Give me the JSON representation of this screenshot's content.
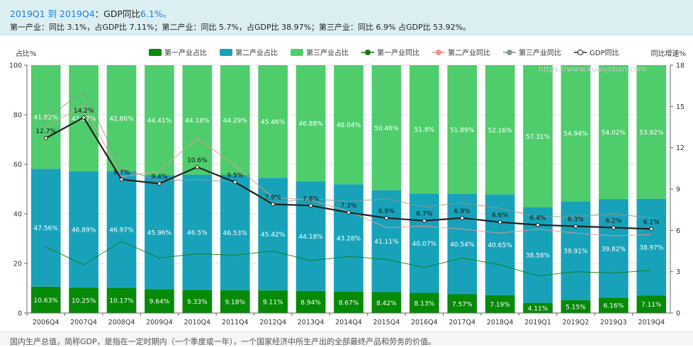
{
  "summary": {
    "range": "2019Q1 到 2019Q4",
    "gdp_label": "：GDP同比",
    "gdp_value": "6.1%。",
    "detail": "第一产业：同比 3.1%，占GDP比 7.11%；第二产业：同比 5.7%，占GDP比 38.97%；第三产业：同比 6.9% 占GDP比 53.92%。"
  },
  "watermark": "https://www.kuaiyidian.com",
  "footer": {
    "text": "国内生产总值，简称GDP，是指在一定时期内（一个季度或一年），一个国家经济中所生产出的全部最终产品和劳务的价值。"
  },
  "colors": {
    "primary_share": "#078a07",
    "secondary_share": "#18a2ba",
    "tertiary_share": "#4fcd6d",
    "primary_yoy": "#0f7c12",
    "secondary_yoy": "#e39890",
    "tertiary_yoy": "#8a9a8a",
    "gdp_yoy": "#222222"
  },
  "chart_data": {
    "type": "bar",
    "stacked": true,
    "categories": [
      "2006Q4",
      "2007Q4",
      "2008Q4",
      "2009Q4",
      "2010Q4",
      "2011Q4",
      "2012Q4",
      "2013Q4",
      "2014Q4",
      "2015Q4",
      "2016Q4",
      "2017Q4",
      "2018Q4",
      "2019Q1",
      "2019Q2",
      "2019Q3",
      "2019Q4"
    ],
    "ylabel_left": "占比%",
    "ylabel_right": "同比增速%",
    "ylim_left": [
      0,
      100
    ],
    "ylim_right": [
      0,
      18
    ],
    "yticks_left": [
      0,
      20,
      40,
      60,
      80,
      100
    ],
    "yticks_right": [
      0,
      3,
      6,
      9,
      12,
      15,
      18
    ],
    "legend_position": "top",
    "legend": [
      "第一产业占比",
      "第二产业占比",
      "第三产业占比",
      "第一产业同比",
      "第二产业同比",
      "第三产业同比",
      "GDP同比"
    ],
    "bar_series": [
      {
        "name": "第一产业占比",
        "values": [
          10.63,
          10.25,
          10.17,
          9.64,
          9.33,
          9.18,
          9.11,
          8.94,
          8.67,
          8.42,
          8.13,
          7.57,
          7.19,
          4.11,
          5.15,
          6.16,
          7.11
        ],
        "labels": [
          "10.63%",
          "10.25%",
          "10.17%",
          "9.64%",
          "9.33%",
          "9.18%",
          "9.11%",
          "8.94%",
          "8.67%",
          "8.42%",
          "8.13%",
          "7.57%",
          "7.19%",
          "4.11%",
          "5.15%",
          "6.16%",
          "7.11%"
        ]
      },
      {
        "name": "第二产业占比",
        "values": [
          47.56,
          46.89,
          46.97,
          45.96,
          46.5,
          46.53,
          45.42,
          44.18,
          43.28,
          41.11,
          40.07,
          40.54,
          40.65,
          38.58,
          39.91,
          39.82,
          38.97
        ],
        "labels": [
          "47.56%",
          "46.89%",
          "46.97%",
          "45.96%",
          "46.5%",
          "46.53%",
          "45.42%",
          "44.18%",
          "43.28%",
          "41.11%",
          "40.07%",
          "40.54%",
          "40.65%",
          "38.58%",
          "39.91%",
          "39.82%",
          "38.97%"
        ]
      },
      {
        "name": "第三产业占比",
        "values": [
          41.82,
          42.87,
          42.86,
          44.41,
          44.18,
          44.29,
          45.46,
          46.88,
          48.04,
          50.46,
          51.8,
          51.89,
          52.16,
          57.31,
          54.94,
          54.02,
          53.92
        ],
        "labels": [
          "41.82%",
          "42.87%",
          "42.86%",
          "44.41%",
          "44.18%",
          "44.29%",
          "45.46%",
          "46.88%",
          "48.04%",
          "50.46%",
          "51.8%",
          "51.89%",
          "52.16%",
          "57.31%",
          "54.94%",
          "54.02%",
          "53.92%"
        ]
      }
    ],
    "line_series": [
      {
        "name": "第一产业同比",
        "values": [
          4.8,
          3.5,
          5.2,
          4.0,
          4.3,
          4.2,
          4.5,
          3.8,
          4.1,
          3.9,
          3.3,
          4.0,
          3.5,
          2.7,
          3.0,
          2.9,
          3.1
        ]
      },
      {
        "name": "第二产业同比",
        "values": [
          13.5,
          15.1,
          9.9,
          10.3,
          12.7,
          10.7,
          8.4,
          8.2,
          7.4,
          6.2,
          6.3,
          6.1,
          5.8,
          6.1,
          5.8,
          5.6,
          5.7
        ]
      },
      {
        "name": "第三产业同比",
        "values": [
          14.1,
          16.1,
          10.5,
          9.6,
          9.7,
          9.5,
          8.0,
          8.3,
          8.1,
          8.3,
          7.7,
          8.0,
          7.6,
          7.0,
          7.0,
          7.2,
          6.9
        ]
      },
      {
        "name": "GDP同比",
        "values": [
          12.7,
          14.2,
          9.7,
          9.4,
          10.6,
          9.5,
          7.9,
          7.8,
          7.3,
          6.9,
          6.7,
          6.9,
          6.6,
          6.4,
          6.3,
          6.2,
          6.1
        ],
        "labels": [
          "12.7%",
          "14.2%",
          "9.7%",
          "9.4%",
          "10.6%",
          "9.5%",
          "7.9%",
          "7.8%",
          "7.3%",
          "6.9%",
          "6.7%",
          "6.9%",
          "6.6%",
          "6.4%",
          "6.3%",
          "6.2%",
          "6.1%"
        ]
      }
    ]
  }
}
